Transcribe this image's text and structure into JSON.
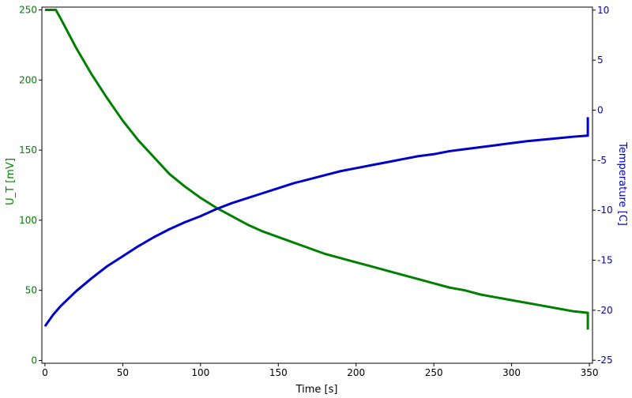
{
  "chart_data": {
    "type": "line",
    "xlabel": "Time [s]",
    "ylabel_left": "U_T [mV]",
    "ylabel_right": "Temperature [C]",
    "xlim": [
      -2,
      352
    ],
    "ylim_left": [
      -2,
      252
    ],
    "ylim_right": [
      -25.3,
      10.3
    ],
    "x_ticks": [
      0,
      50,
      100,
      150,
      200,
      250,
      300,
      350
    ],
    "y_left_ticks": [
      0,
      50,
      100,
      150,
      200,
      250
    ],
    "y_right_ticks": [
      -25,
      -20,
      -15,
      -10,
      -5,
      0,
      5,
      10
    ],
    "grid": false,
    "series": [
      {
        "axis": "left",
        "color": "#008000",
        "points": [
          [
            0,
            250
          ],
          [
            7,
            250
          ],
          [
            10,
            244
          ],
          [
            20,
            223
          ],
          [
            30,
            204
          ],
          [
            40,
            187
          ],
          [
            50,
            171
          ],
          [
            60,
            157
          ],
          [
            70,
            145
          ],
          [
            80,
            133
          ],
          [
            90,
            124
          ],
          [
            100,
            116
          ],
          [
            110,
            109
          ],
          [
            120,
            103
          ],
          [
            130,
            97
          ],
          [
            140,
            92
          ],
          [
            150,
            88
          ],
          [
            160,
            84
          ],
          [
            170,
            80
          ],
          [
            180,
            76
          ],
          [
            190,
            73
          ],
          [
            200,
            70
          ],
          [
            210,
            67
          ],
          [
            220,
            64
          ],
          [
            230,
            61
          ],
          [
            240,
            58
          ],
          [
            250,
            55
          ],
          [
            260,
            52
          ],
          [
            270,
            50
          ],
          [
            280,
            47
          ],
          [
            290,
            45
          ],
          [
            300,
            43
          ],
          [
            310,
            41
          ],
          [
            320,
            39
          ],
          [
            330,
            37
          ],
          [
            340,
            35
          ],
          [
            349,
            34
          ],
          [
            349,
            22
          ]
        ]
      },
      {
        "axis": "right",
        "color": "#0000c8",
        "points": [
          [
            0,
            -21.6
          ],
          [
            5,
            -20.5
          ],
          [
            10,
            -19.6
          ],
          [
            20,
            -18.1
          ],
          [
            30,
            -16.8
          ],
          [
            40,
            -15.6
          ],
          [
            50,
            -14.6
          ],
          [
            60,
            -13.6
          ],
          [
            70,
            -12.7
          ],
          [
            80,
            -11.9
          ],
          [
            90,
            -11.2
          ],
          [
            100,
            -10.6
          ],
          [
            110,
            -9.9
          ],
          [
            120,
            -9.3
          ],
          [
            130,
            -8.8
          ],
          [
            140,
            -8.3
          ],
          [
            150,
            -7.8
          ],
          [
            160,
            -7.3
          ],
          [
            170,
            -6.9
          ],
          [
            180,
            -6.5
          ],
          [
            190,
            -6.1
          ],
          [
            200,
            -5.8
          ],
          [
            210,
            -5.5
          ],
          [
            220,
            -5.2
          ],
          [
            230,
            -4.9
          ],
          [
            240,
            -4.6
          ],
          [
            250,
            -4.4
          ],
          [
            260,
            -4.1
          ],
          [
            270,
            -3.9
          ],
          [
            280,
            -3.7
          ],
          [
            290,
            -3.5
          ],
          [
            300,
            -3.3
          ],
          [
            310,
            -3.1
          ],
          [
            320,
            -2.95
          ],
          [
            330,
            -2.8
          ],
          [
            340,
            -2.65
          ],
          [
            349,
            -2.55
          ],
          [
            349,
            -0.7
          ]
        ]
      }
    ]
  }
}
